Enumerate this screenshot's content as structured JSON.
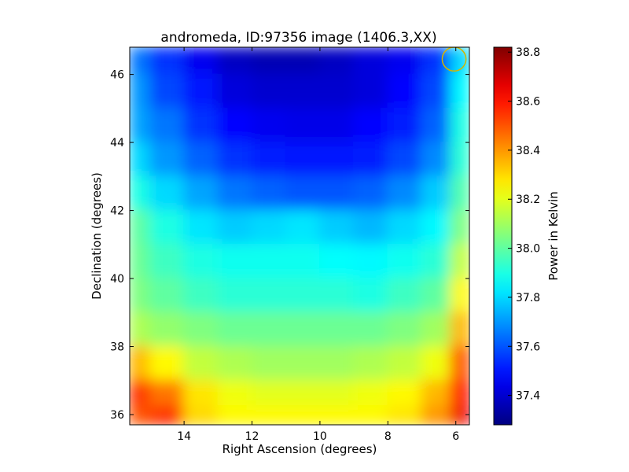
{
  "chart_data": {
    "type": "heatmap",
    "title": "andromeda, ID:97356 image (1406.3,XX)",
    "xlabel": "Right Ascension (degrees)",
    "ylabel": "Declination (degrees)",
    "xlim": [
      15.6,
      5.6
    ],
    "ylim": [
      35.7,
      46.8
    ],
    "x_inverted": true,
    "xticks": [
      14,
      12,
      10,
      8,
      6
    ],
    "xtick_labels": [
      "14",
      "12",
      "10",
      "8",
      "6"
    ],
    "yticks": [
      36,
      38,
      40,
      42,
      44,
      46
    ],
    "ytick_labels": [
      "36",
      "38",
      "40",
      "42",
      "44",
      "46"
    ],
    "grid": false,
    "colormap": "jet",
    "colorbar": {
      "label": "Power in Kelvin",
      "vmin": 37.28,
      "vmax": 38.82,
      "ticks": [
        37.4,
        37.6,
        37.8,
        38.0,
        38.2,
        38.4,
        38.6,
        38.8
      ],
      "tick_labels": [
        "37.4",
        "37.6",
        "37.8",
        "38.0",
        "38.2",
        "38.4",
        "38.6",
        "38.8"
      ]
    },
    "x": [
      15.5,
      14.5,
      13.5,
      12.5,
      11.5,
      10.5,
      9.5,
      8.5,
      7.5,
      6.5,
      5.8
    ],
    "y": [
      46.5,
      45.5,
      44.5,
      43.5,
      42.5,
      41.5,
      40.5,
      39.5,
      38.5,
      37.5,
      36.5,
      36.0
    ],
    "z": [
      [
        37.65,
        37.55,
        37.45,
        37.38,
        37.36,
        37.36,
        37.38,
        37.42,
        37.45,
        37.55,
        37.8
      ],
      [
        37.7,
        37.58,
        37.5,
        37.42,
        37.4,
        37.4,
        37.4,
        37.42,
        37.48,
        37.58,
        37.85
      ],
      [
        37.72,
        37.65,
        37.55,
        37.48,
        37.45,
        37.44,
        37.44,
        37.48,
        37.52,
        37.62,
        37.9
      ],
      [
        37.8,
        37.7,
        37.62,
        37.55,
        37.52,
        37.5,
        37.5,
        37.52,
        37.58,
        37.68,
        37.92
      ],
      [
        37.9,
        37.8,
        37.72,
        37.65,
        37.62,
        37.6,
        37.6,
        37.62,
        37.68,
        37.78,
        37.98
      ],
      [
        38.0,
        37.9,
        37.82,
        37.78,
        37.8,
        37.82,
        37.78,
        37.75,
        37.8,
        37.85,
        38.05
      ],
      [
        38.02,
        37.95,
        37.9,
        37.88,
        37.88,
        37.88,
        37.86,
        37.85,
        37.88,
        37.92,
        38.15
      ],
      [
        38.05,
        38.0,
        37.95,
        37.92,
        37.92,
        37.92,
        37.92,
        37.9,
        37.95,
        38.0,
        38.25
      ],
      [
        38.12,
        38.08,
        38.05,
        38.02,
        38.02,
        38.02,
        38.02,
        38.02,
        38.05,
        38.1,
        38.35
      ],
      [
        38.35,
        38.25,
        38.15,
        38.12,
        38.1,
        38.1,
        38.1,
        38.12,
        38.15,
        38.22,
        38.5
      ],
      [
        38.55,
        38.45,
        38.28,
        38.22,
        38.2,
        38.2,
        38.2,
        38.22,
        38.25,
        38.35,
        38.6
      ],
      [
        38.5,
        38.55,
        38.3,
        38.25,
        38.25,
        38.25,
        38.25,
        38.25,
        38.28,
        38.4,
        38.65
      ]
    ],
    "annotations": [
      {
        "shape": "circle",
        "center": [
          6.05,
          46.45
        ],
        "radius_deg": 0.35,
        "color": "#d4b400"
      }
    ]
  }
}
